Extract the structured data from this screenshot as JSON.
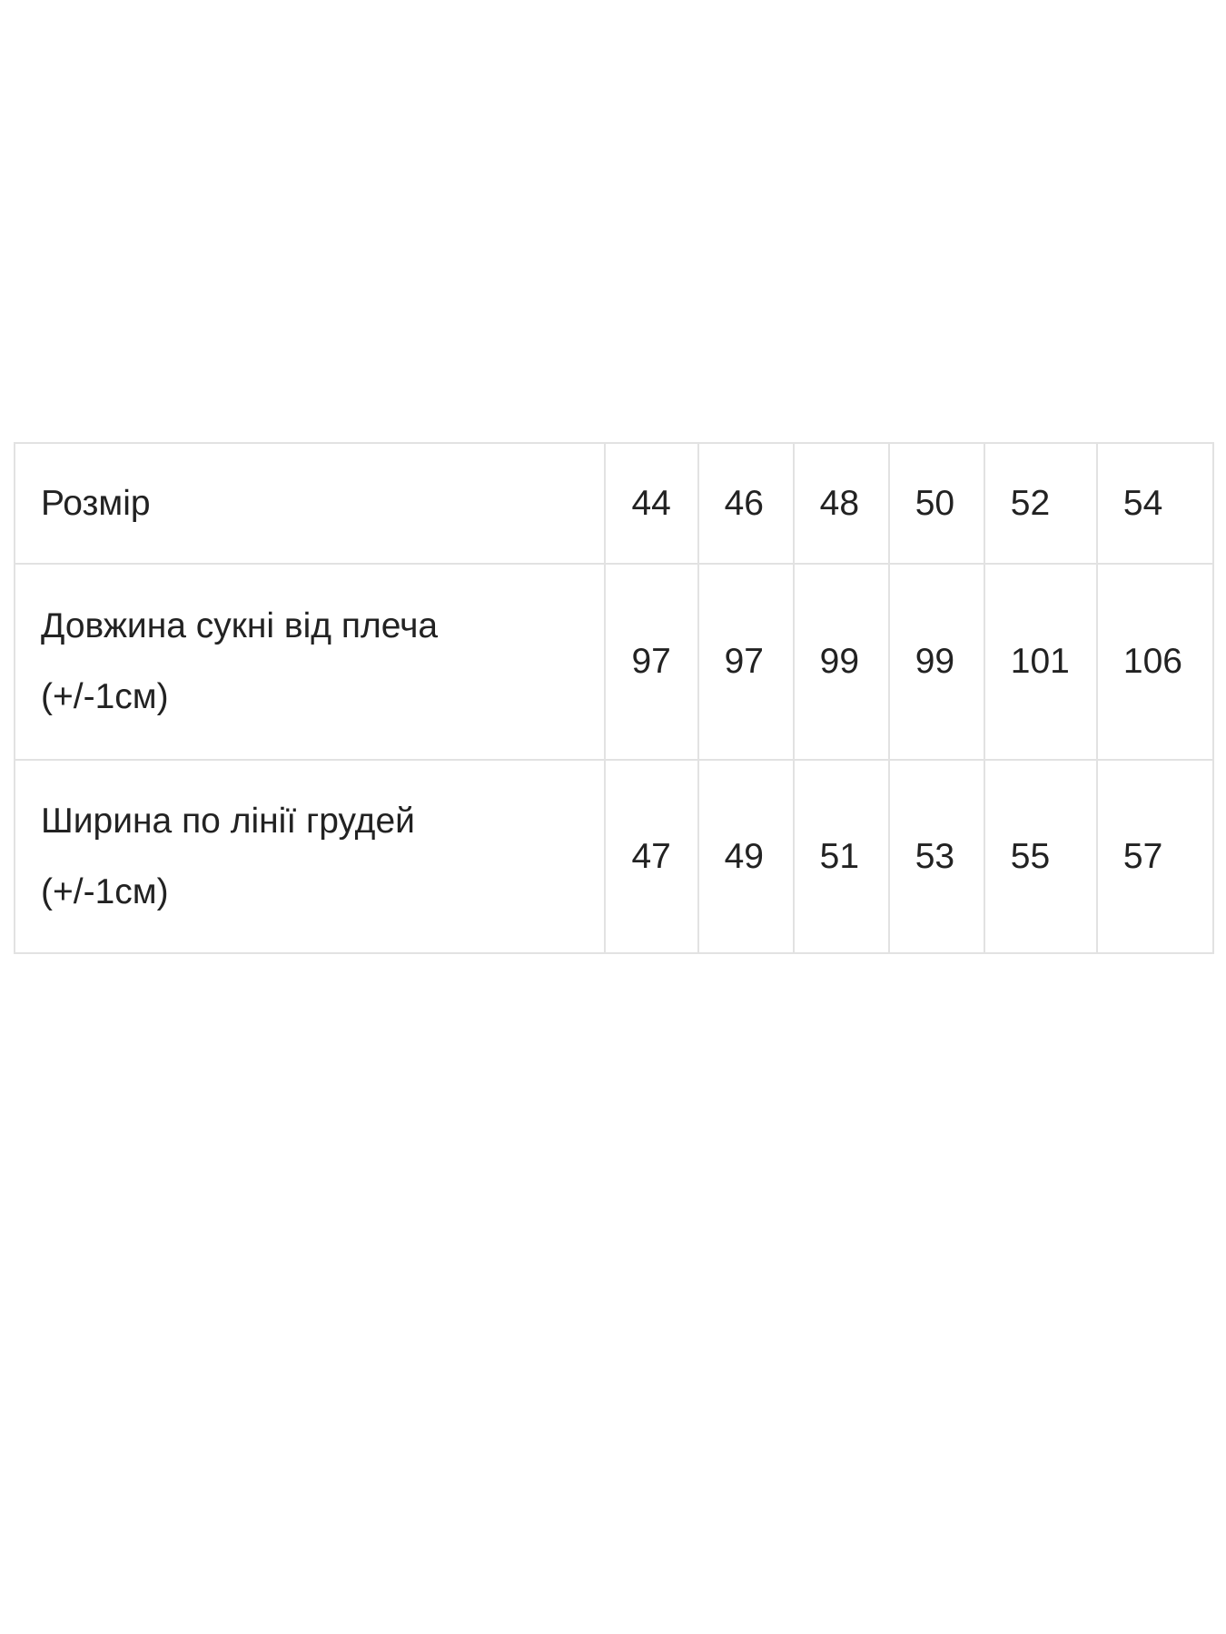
{
  "size_table": {
    "rows": [
      {
        "label": "Розмір",
        "label_note": "",
        "values": [
          "44",
          "46",
          "48",
          "50",
          "52",
          "54"
        ]
      },
      {
        "label": "Довжина сукні від плеча",
        "label_note": "(+/-1см)",
        "values": [
          "97",
          "97",
          "99",
          "99",
          "101",
          "106"
        ]
      },
      {
        "label": "Ширина по лінії грудей",
        "label_note": "(+/-1см)",
        "values": [
          "47",
          "49",
          "51",
          "53",
          "55",
          "57"
        ]
      }
    ]
  }
}
